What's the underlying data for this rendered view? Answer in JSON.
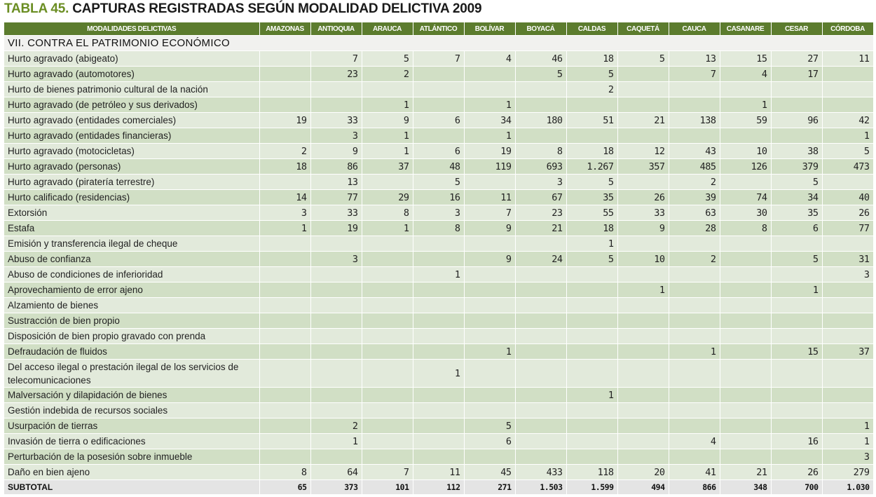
{
  "title": {
    "number": "TABLA 45.",
    "text": "CAPTURAS REGISTRADAS SEGÚN MODALIDAD DELICTIVA 2009"
  },
  "columns": [
    "MODALIDADES DELICTIVAS",
    "AMAZONAS",
    "ANTIOQUIA",
    "ARAUCA",
    "ATLÁNTICO",
    "BOLÍVAR",
    "BOYACÁ",
    "CALDAS",
    "CAQUETÁ",
    "CAUCA",
    "CASANARE",
    "CESAR",
    "CÓRDOBA"
  ],
  "section": "VII. CONTRA EL PATRIMONIO ECONÓMICO",
  "rows": [
    {
      "label": "Hurto agravado (abigeato)",
      "values": [
        "",
        "7",
        "5",
        "7",
        "4",
        "46",
        "18",
        "5",
        "13",
        "15",
        "27",
        "11"
      ]
    },
    {
      "label": "Hurto agravado (automotores)",
      "values": [
        "",
        "23",
        "2",
        "",
        "",
        "5",
        "5",
        "",
        "7",
        "4",
        "17",
        ""
      ]
    },
    {
      "label": "Hurto de bienes patrimonio cultural de la nación",
      "values": [
        "",
        "",
        "",
        "",
        "",
        "",
        "2",
        "",
        "",
        "",
        "",
        ""
      ]
    },
    {
      "label": "Hurto agravado (de petróleo y sus derivados)",
      "values": [
        "",
        "",
        "1",
        "",
        "1",
        "",
        "",
        "",
        "",
        "1",
        "",
        ""
      ]
    },
    {
      "label": "Hurto agravado (entidades comerciales)",
      "values": [
        "19",
        "33",
        "9",
        "6",
        "34",
        "180",
        "51",
        "21",
        "138",
        "59",
        "96",
        "42"
      ]
    },
    {
      "label": "Hurto agravado (entidades financieras)",
      "values": [
        "",
        "3",
        "1",
        "",
        "1",
        "",
        "",
        "",
        "",
        "",
        "",
        "1"
      ]
    },
    {
      "label": "Hurto agravado (motocicletas)",
      "values": [
        "2",
        "9",
        "1",
        "6",
        "19",
        "8",
        "18",
        "12",
        "43",
        "10",
        "38",
        "5"
      ]
    },
    {
      "label": "Hurto agravado (personas)",
      "values": [
        "18",
        "86",
        "37",
        "48",
        "119",
        "693",
        "1.267",
        "357",
        "485",
        "126",
        "379",
        "473"
      ]
    },
    {
      "label": "Hurto agravado (piratería terrestre)",
      "values": [
        "",
        "13",
        "",
        "5",
        "",
        "3",
        "5",
        "",
        "2",
        "",
        "5",
        ""
      ]
    },
    {
      "label": "Hurto calificado (residencias)",
      "values": [
        "14",
        "77",
        "29",
        "16",
        "11",
        "67",
        "35",
        "26",
        "39",
        "74",
        "34",
        "40"
      ]
    },
    {
      "label": "Extorsión",
      "values": [
        "3",
        "33",
        "8",
        "3",
        "7",
        "23",
        "55",
        "33",
        "63",
        "30",
        "35",
        "26"
      ]
    },
    {
      "label": "Estafa",
      "values": [
        "1",
        "19",
        "1",
        "8",
        "9",
        "21",
        "18",
        "9",
        "28",
        "8",
        "6",
        "77"
      ]
    },
    {
      "label": "Emisión y transferencia ilegal de cheque",
      "values": [
        "",
        "",
        "",
        "",
        "",
        "",
        "1",
        "",
        "",
        "",
        "",
        ""
      ]
    },
    {
      "label": "Abuso de confianza",
      "values": [
        "",
        "3",
        "",
        "",
        "9",
        "24",
        "5",
        "10",
        "2",
        "",
        "5",
        "31"
      ]
    },
    {
      "label": "Abuso de condiciones de inferioridad",
      "values": [
        "",
        "",
        "",
        "1",
        "",
        "",
        "",
        "",
        "",
        "",
        "",
        "3"
      ]
    },
    {
      "label": "Aprovechamiento de error ajeno",
      "values": [
        "",
        "",
        "",
        "",
        "",
        "",
        "",
        "1",
        "",
        "",
        "1",
        ""
      ]
    },
    {
      "label": "Alzamiento de bienes",
      "values": [
        "",
        "",
        "",
        "",
        "",
        "",
        "",
        "",
        "",
        "",
        "",
        ""
      ]
    },
    {
      "label": "Sustracción de bien propio",
      "values": [
        "",
        "",
        "",
        "",
        "",
        "",
        "",
        "",
        "",
        "",
        "",
        ""
      ]
    },
    {
      "label": "Disposición de bien propio gravado con prenda",
      "values": [
        "",
        "",
        "",
        "",
        "",
        "",
        "",
        "",
        "",
        "",
        "",
        ""
      ]
    },
    {
      "label": "Defraudación de fluidos",
      "values": [
        "",
        "",
        "",
        "",
        "1",
        "",
        "",
        "",
        "1",
        "",
        "15",
        "37"
      ]
    },
    {
      "label": "Del acceso ilegal o prestación ilegal de los servicios de telecomunicaciones",
      "values": [
        "",
        "",
        "",
        "1",
        "",
        "",
        "",
        "",
        "",
        "",
        "",
        ""
      ],
      "tall": true
    },
    {
      "label": "Malversación y dilapidación de bienes",
      "values": [
        "",
        "",
        "",
        "",
        "",
        "",
        "1",
        "",
        "",
        "",
        "",
        ""
      ]
    },
    {
      "label": "Gestión indebida de recursos sociales",
      "values": [
        "",
        "",
        "",
        "",
        "",
        "",
        "",
        "",
        "",
        "",
        "",
        ""
      ]
    },
    {
      "label": "Usurpación de tierras",
      "values": [
        "",
        "2",
        "",
        "",
        "5",
        "",
        "",
        "",
        "",
        "",
        "",
        "1"
      ]
    },
    {
      "label": "Invasión de tierra o edificaciones",
      "values": [
        "",
        "1",
        "",
        "",
        "6",
        "",
        "",
        "",
        "4",
        "",
        "16",
        "1"
      ]
    },
    {
      "label": "Perturbación de la posesión sobre inmueble",
      "values": [
        "",
        "",
        "",
        "",
        "",
        "",
        "",
        "",
        "",
        "",
        "",
        "3"
      ]
    },
    {
      "label": "Daño en bien ajeno",
      "values": [
        "8",
        "64",
        "7",
        "11",
        "45",
        "433",
        "118",
        "20",
        "41",
        "21",
        "26",
        "279"
      ]
    }
  ],
  "subtotal": {
    "label": "SUBTOTAL",
    "values": [
      "65",
      "373",
      "101",
      "112",
      "271",
      "1.503",
      "1.599",
      "494",
      "866",
      "348",
      "700",
      "1.030"
    ]
  },
  "colors": {
    "header": "#5c7c2e",
    "row_light": "#e2eadb",
    "row_dark": "#d1dfc5",
    "title_accent": "#6b8e23"
  }
}
